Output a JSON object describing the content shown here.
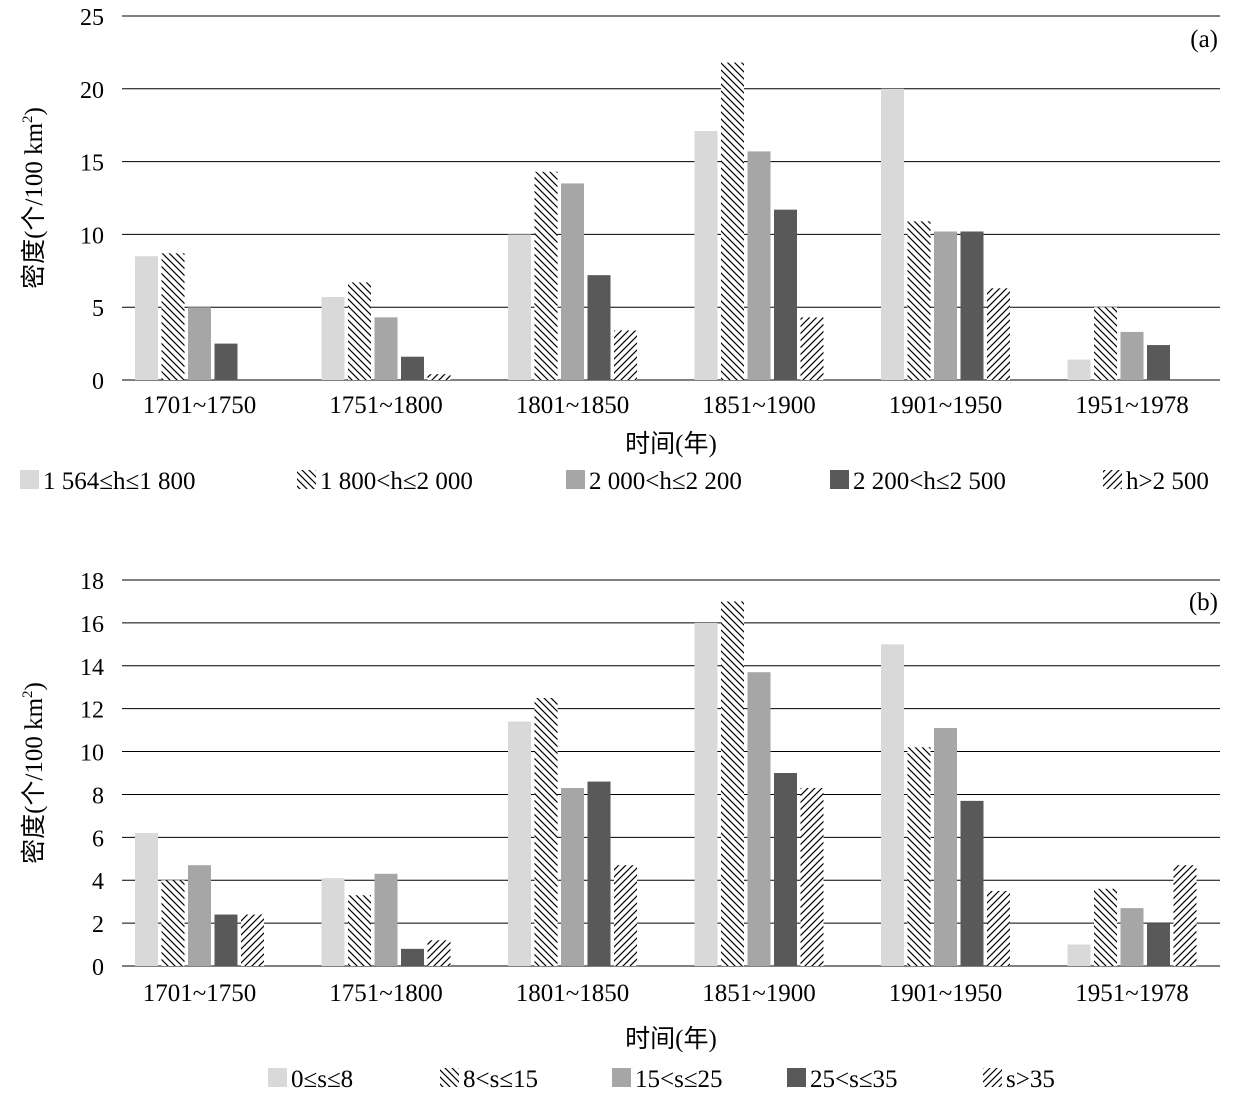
{
  "colors": {
    "s1": "#d9d9d9",
    "s3": "#a6a6a6",
    "s4": "#595959",
    "pattern_stroke": "#000000",
    "grid": "#000000"
  },
  "chart_data": [
    {
      "type": "bar",
      "panel_label": "(a)",
      "categories": [
        "1701~1750",
        "1751~1800",
        "1801~1850",
        "1851~1900",
        "1901~1950",
        "1951~1978"
      ],
      "series": [
        {
          "name": "1 564≤h≤1 800",
          "fill": "light-gray-solid",
          "values": [
            8.5,
            5.7,
            10.0,
            17.1,
            20.0,
            1.4
          ]
        },
        {
          "name": "1 800<h≤2 000",
          "fill": "back-diagonal-hatch",
          "values": [
            8.7,
            6.7,
            14.3,
            21.8,
            10.9,
            5.0
          ]
        },
        {
          "name": "2 000<h≤2 200",
          "fill": "medium-gray-solid",
          "values": [
            5.0,
            4.3,
            13.5,
            15.7,
            10.2,
            3.3
          ]
        },
        {
          "name": "2 200<h≤2 500",
          "fill": "dark-gray-solid",
          "values": [
            2.5,
            1.6,
            7.2,
            11.7,
            10.2,
            2.4
          ]
        },
        {
          "name": "h>2 500",
          "fill": "forward-diagonal-hatch",
          "values": [
            0,
            0.4,
            3.4,
            4.3,
            6.3,
            0
          ]
        }
      ],
      "ylabel": "密度(个/100 km2)",
      "xlabel": "时间(年)",
      "ylim": [
        0,
        25
      ],
      "yticks": [
        0,
        5,
        10,
        15,
        20,
        25
      ],
      "grid": "horizontal",
      "legend_placement": "bottom"
    },
    {
      "type": "bar",
      "panel_label": "(b)",
      "categories": [
        "1701~1750",
        "1751~1800",
        "1801~1850",
        "1851~1900",
        "1901~1950",
        "1951~1978"
      ],
      "series": [
        {
          "name": "0≤s≤8",
          "fill": "light-gray-solid",
          "values": [
            6.2,
            4.1,
            11.4,
            16.0,
            15.0,
            1.0
          ]
        },
        {
          "name": "8<s≤15",
          "fill": "back-diagonal-hatch",
          "values": [
            4.0,
            3.3,
            12.5,
            17.0,
            10.2,
            3.6
          ]
        },
        {
          "name": "15<s≤25",
          "fill": "medium-gray-solid",
          "values": [
            4.7,
            4.3,
            8.3,
            13.7,
            11.1,
            2.7
          ]
        },
        {
          "name": "25<s≤35",
          "fill": "dark-gray-solid",
          "values": [
            2.4,
            0.8,
            8.6,
            9.0,
            7.7,
            2.0
          ]
        },
        {
          "name": "s>35",
          "fill": "forward-diagonal-hatch",
          "values": [
            2.4,
            1.2,
            4.7,
            8.3,
            3.5,
            4.7
          ]
        }
      ],
      "ylabel": "密度(个/100 km2)",
      "xlabel": "时间(年)",
      "ylim": [
        0,
        18
      ],
      "yticks": [
        0,
        2,
        4,
        6,
        8,
        10,
        12,
        14,
        16,
        18
      ],
      "grid": "horizontal",
      "legend_placement": "bottom"
    }
  ]
}
